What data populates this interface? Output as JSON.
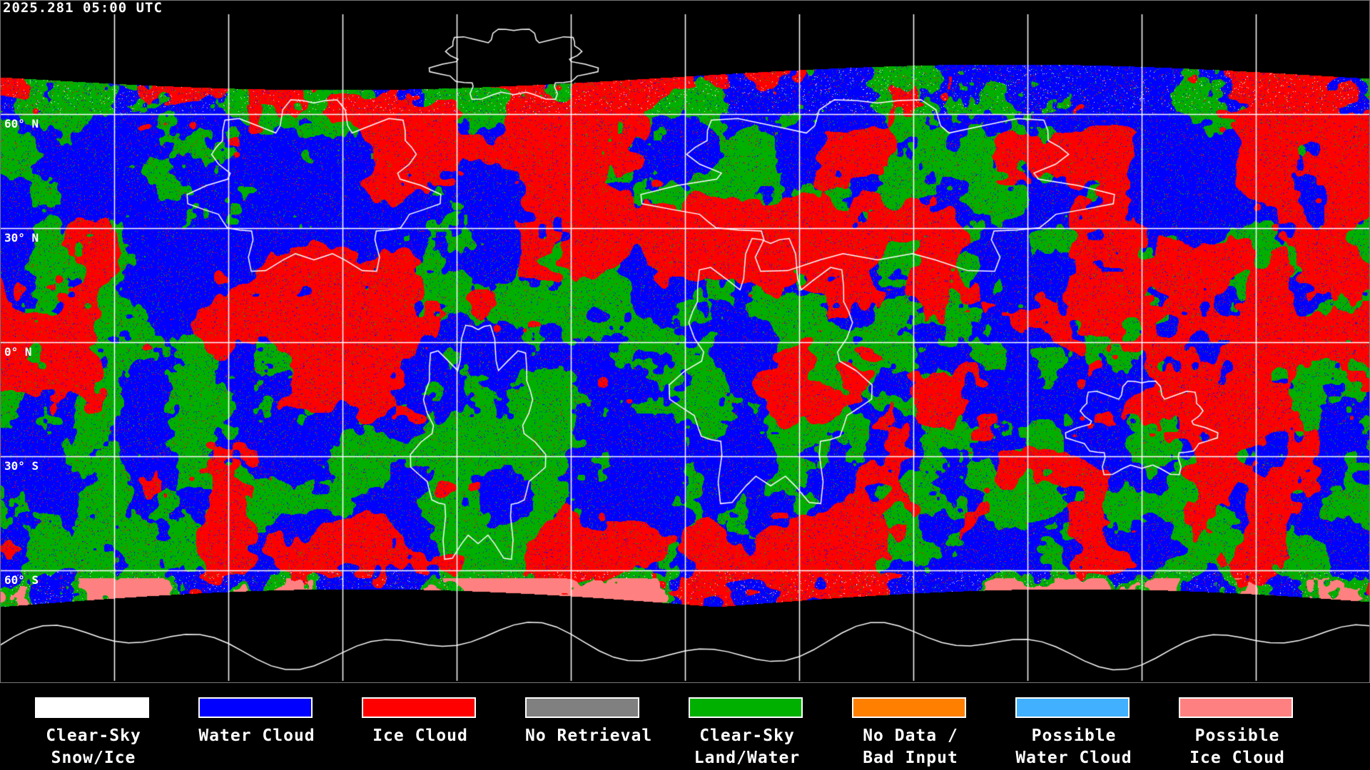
{
  "timestamp": "2025.281 05:00 UTC",
  "lat_labels": [
    "60° N",
    "30° N",
    "0° N",
    "30° S",
    "60° S"
  ],
  "legend": [
    {
      "line1": "Clear-Sky",
      "line2": "Snow/Ice",
      "color": "#ffffff"
    },
    {
      "line1": "Water Cloud",
      "line2": "",
      "color": "#0000ff"
    },
    {
      "line1": "Ice Cloud",
      "line2": "",
      "color": "#ff0000"
    },
    {
      "line1": "No Retrieval",
      "line2": "",
      "color": "#808080"
    },
    {
      "line1": "Clear-Sky",
      "line2": "Land/Water",
      "color": "#00b000"
    },
    {
      "line1": "No Data /",
      "line2": "Bad Input",
      "color": "#ff8000"
    },
    {
      "line1": "Possible",
      "line2": "Water Cloud",
      "color": "#40b0ff"
    },
    {
      "line1": "Possible",
      "line2": "Ice Cloud",
      "color": "#ff8080"
    }
  ],
  "map": {
    "projection": "equirectangular",
    "grid_interval_deg": 30,
    "background": "#000000",
    "grid_color": "#ffffff",
    "coastline_color": "#ffffff"
  }
}
